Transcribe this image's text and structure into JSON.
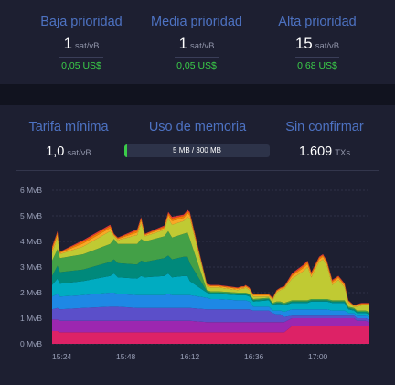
{
  "fees": {
    "low": {
      "label": "Baja prioridad",
      "value": "1",
      "unit": "sat/vB",
      "fiat": "0,05 US$"
    },
    "medium": {
      "label": "Media prioridad",
      "value": "1",
      "unit": "sat/vB",
      "fiat": "0,05 US$"
    },
    "high": {
      "label": "Alta prioridad",
      "value": "15",
      "unit": "sat/vB",
      "fiat": "0,68 US$"
    }
  },
  "mempool": {
    "min_fee": {
      "label": "Tarifa mínima",
      "value": "1,0",
      "unit": "sat/vB"
    },
    "memory": {
      "label": "Uso de memoria",
      "text": "5 MB / 300 MB",
      "fraction": 0.0167
    },
    "unconfirmed": {
      "label": "Sin confirmar",
      "value": "1.609",
      "unit": "TXs"
    }
  },
  "chart_data": {
    "type": "area",
    "stacked": true,
    "grid": true,
    "legend": "none",
    "ylabel_ticks": [
      "0 MvB",
      "1 MvB",
      "2 MvB",
      "3 MvB",
      "4 MvB",
      "5 MvB",
      "6 MvB"
    ],
    "ylim": [
      0,
      6
    ],
    "xlabel_ticks": [
      "15:24",
      "15:48",
      "16:12",
      "16:36",
      "17:00"
    ],
    "x": [
      0,
      7,
      10,
      40,
      75,
      80,
      85,
      110,
      115,
      120,
      145,
      150,
      155,
      170,
      175,
      178,
      200,
      205,
      210,
      215,
      240,
      245,
      248,
      250,
      255,
      260,
      280,
      285,
      290,
      295,
      300,
      310,
      325,
      330,
      335,
      345,
      350,
      355,
      362,
      370,
      378,
      383,
      390,
      394,
      400,
      405,
      410
    ],
    "x_domain": [
      0,
      410
    ],
    "series": [
      {
        "color": "#dd2266",
        "values": [
          0.5,
          0.5,
          0.45,
          0.45,
          0.45,
          0.45,
          0.45,
          0.45,
          0.45,
          0.45,
          0.45,
          0.45,
          0.45,
          0.45,
          0.45,
          0.45,
          0.45,
          0.45,
          0.45,
          0.45,
          0.45,
          0.45,
          0.45,
          0.45,
          0.45,
          0.45,
          0.45,
          0.45,
          0.45,
          0.45,
          0.45,
          0.7,
          0.7,
          0.7,
          0.7,
          0.7,
          0.7,
          0.7,
          0.7,
          0.7,
          0.7,
          0.7,
          0.7,
          0.7,
          0.7,
          0.7,
          0.7
        ]
      },
      {
        "color": "#9c27b0",
        "values": [
          0.45,
          0.45,
          0.45,
          0.45,
          0.45,
          0.45,
          0.45,
          0.45,
          0.45,
          0.45,
          0.45,
          0.45,
          0.45,
          0.45,
          0.45,
          0.45,
          0.4,
          0.4,
          0.4,
          0.4,
          0.4,
          0.4,
          0.4,
          0.4,
          0.4,
          0.4,
          0.4,
          0.4,
          0.4,
          0.4,
          0.4,
          0.3,
          0.3,
          0.3,
          0.3,
          0.3,
          0.3,
          0.3,
          0.3,
          0.3,
          0.3,
          0.3,
          0.3,
          0.2,
          0.2,
          0.2,
          0.15
        ]
      },
      {
        "color": "#5b4fc9",
        "values": [
          0.4,
          0.45,
          0.45,
          0.5,
          0.55,
          0.55,
          0.55,
          0.5,
          0.5,
          0.5,
          0.5,
          0.5,
          0.5,
          0.5,
          0.5,
          0.5,
          0.5,
          0.5,
          0.5,
          0.5,
          0.5,
          0.5,
          0.5,
          0.5,
          0.5,
          0.45,
          0.45,
          0.35,
          0.3,
          0.3,
          0.2,
          0.1,
          0.1,
          0.1,
          0.1,
          0.1,
          0.1,
          0.1,
          0.1,
          0.1,
          0.1,
          0.1,
          0.1,
          0.1,
          0.1,
          0.1,
          0.1
        ]
      },
      {
        "color": "#1e88e5",
        "values": [
          0.5,
          0.55,
          0.5,
          0.5,
          0.55,
          0.55,
          0.5,
          0.5,
          0.5,
          0.5,
          0.5,
          0.55,
          0.5,
          0.5,
          0.5,
          0.5,
          0.45,
          0.4,
          0.4,
          0.4,
          0.35,
          0.35,
          0.35,
          0.35,
          0.3,
          0.15,
          0.15,
          0.1,
          0.15,
          0.15,
          0.2,
          0.25,
          0.25,
          0.25,
          0.25,
          0.25,
          0.25,
          0.25,
          0.2,
          0.2,
          0.2,
          0.1,
          0.1,
          0.1,
          0.1,
          0.1,
          0.1
        ]
      },
      {
        "color": "#00acc1",
        "values": [
          0.45,
          0.6,
          0.5,
          0.55,
          0.65,
          0.75,
          0.65,
          0.65,
          0.75,
          0.7,
          0.75,
          0.8,
          0.7,
          0.75,
          0.75,
          0.55,
          0.2,
          0.2,
          0.2,
          0.2,
          0.2,
          0.2,
          0.2,
          0.2,
          0.2,
          0.2,
          0.25,
          0.2,
          0.25,
          0.25,
          0.25,
          0.25,
          0.25,
          0.25,
          0.3,
          0.3,
          0.3,
          0.3,
          0.3,
          0.3,
          0.3,
          0.15,
          0.1,
          0.1,
          0.1,
          0.1,
          0.1
        ]
      },
      {
        "color": "#00897b",
        "values": [
          0.35,
          0.5,
          0.45,
          0.45,
          0.55,
          0.55,
          0.55,
          0.55,
          0.6,
          0.6,
          0.7,
          0.7,
          0.7,
          0.75,
          0.75,
          0.7,
          0.05,
          0.05,
          0.05,
          0.05,
          0.05,
          0.05,
          0.05,
          0.05,
          0.05,
          0.05,
          0.05,
          0.05,
          0.05,
          0.05,
          0.05,
          0.05,
          0.05,
          0.05,
          0.05,
          0.05,
          0.05,
          0.05,
          0.05,
          0.05,
          0.05,
          0.05,
          0.05,
          0.05,
          0.05,
          0.05,
          0.05
        ]
      },
      {
        "color": "#43a047",
        "values": [
          0.6,
          0.65,
          0.55,
          0.6,
          0.7,
          0.8,
          0.75,
          0.8,
          0.85,
          0.8,
          0.85,
          0.95,
          0.85,
          0.9,
          0.95,
          0.95,
          0.05,
          0.05,
          0.05,
          0.05,
          0.05,
          0.05,
          0.05,
          0.05,
          0.05,
          0.05,
          0.05,
          0.05,
          0.05,
          0.05,
          0.05,
          0.05,
          0.05,
          0.05,
          0.05,
          0.05,
          0.05,
          0.05,
          0.05,
          0.05,
          0.05,
          0.05,
          0.05,
          0.05,
          0.05,
          0.05,
          0.05
        ]
      },
      {
        "color": "#c0ca33",
        "values": [
          0.3,
          0.45,
          0.15,
          0.3,
          0.5,
          0.1,
          0.15,
          0.35,
          0.6,
          0.2,
          0.25,
          0.5,
          0.5,
          0.5,
          0.6,
          0.8,
          0.15,
          0.15,
          0.15,
          0.15,
          0.1,
          0.15,
          0.15,
          0.2,
          0.15,
          0.1,
          0.05,
          0.1,
          0.35,
          0.45,
          0.55,
          0.85,
          1.15,
          1.3,
          0.85,
          1.45,
          1.55,
          1.3,
          0.6,
          0.8,
          0.5,
          0.15,
          0.05,
          0.15,
          0.2,
          0.2,
          0.25
        ]
      },
      {
        "color": "#f9a825",
        "values": [
          0.12,
          0.12,
          0.05,
          0.12,
          0.12,
          0.05,
          0.05,
          0.1,
          0.12,
          0.05,
          0.08,
          0.12,
          0.15,
          0.12,
          0.15,
          0.12,
          0.05,
          0.05,
          0.05,
          0.05,
          0.05,
          0.05,
          0.05,
          0.05,
          0.05,
          0.05,
          0.05,
          0.05,
          0.05,
          0.05,
          0.05,
          0.1,
          0.12,
          0.12,
          0.1,
          0.1,
          0.1,
          0.1,
          0.1,
          0.08,
          0.08,
          0.05,
          0.03,
          0.05,
          0.05,
          0.05,
          0.05
        ]
      },
      {
        "color": "#f57c00",
        "values": [
          0.08,
          0.08,
          0.03,
          0.08,
          0.08,
          0.03,
          0.03,
          0.08,
          0.08,
          0.03,
          0.05,
          0.08,
          0.1,
          0.08,
          0.08,
          0.08,
          0.03,
          0.03,
          0.03,
          0.03,
          0.03,
          0.03,
          0.03,
          0.03,
          0.03,
          0.03,
          0.03,
          0.03,
          0.03,
          0.03,
          0.03,
          0.06,
          0.08,
          0.08,
          0.06,
          0.06,
          0.06,
          0.06,
          0.06,
          0.05,
          0.05,
          0.03,
          0.02,
          0.03,
          0.03,
          0.03,
          0.03
        ]
      },
      {
        "color": "#e53935",
        "values": [
          0.05,
          0.05,
          0.02,
          0.05,
          0.05,
          0.02,
          0.02,
          0.05,
          0.05,
          0.02,
          0.04,
          0.05,
          0.06,
          0.05,
          0.05,
          0.05,
          0.02,
          0.02,
          0.02,
          0.02,
          0.02,
          0.02,
          0.02,
          0.02,
          0.02,
          0.02,
          0.02,
          0.02,
          0.02,
          0.02,
          0.02,
          0.05,
          0.05,
          0.05,
          0.04,
          0.04,
          0.04,
          0.04,
          0.04,
          0.03,
          0.03,
          0.02,
          0.01,
          0.02,
          0.02,
          0.02,
          0.02
        ]
      }
    ]
  }
}
